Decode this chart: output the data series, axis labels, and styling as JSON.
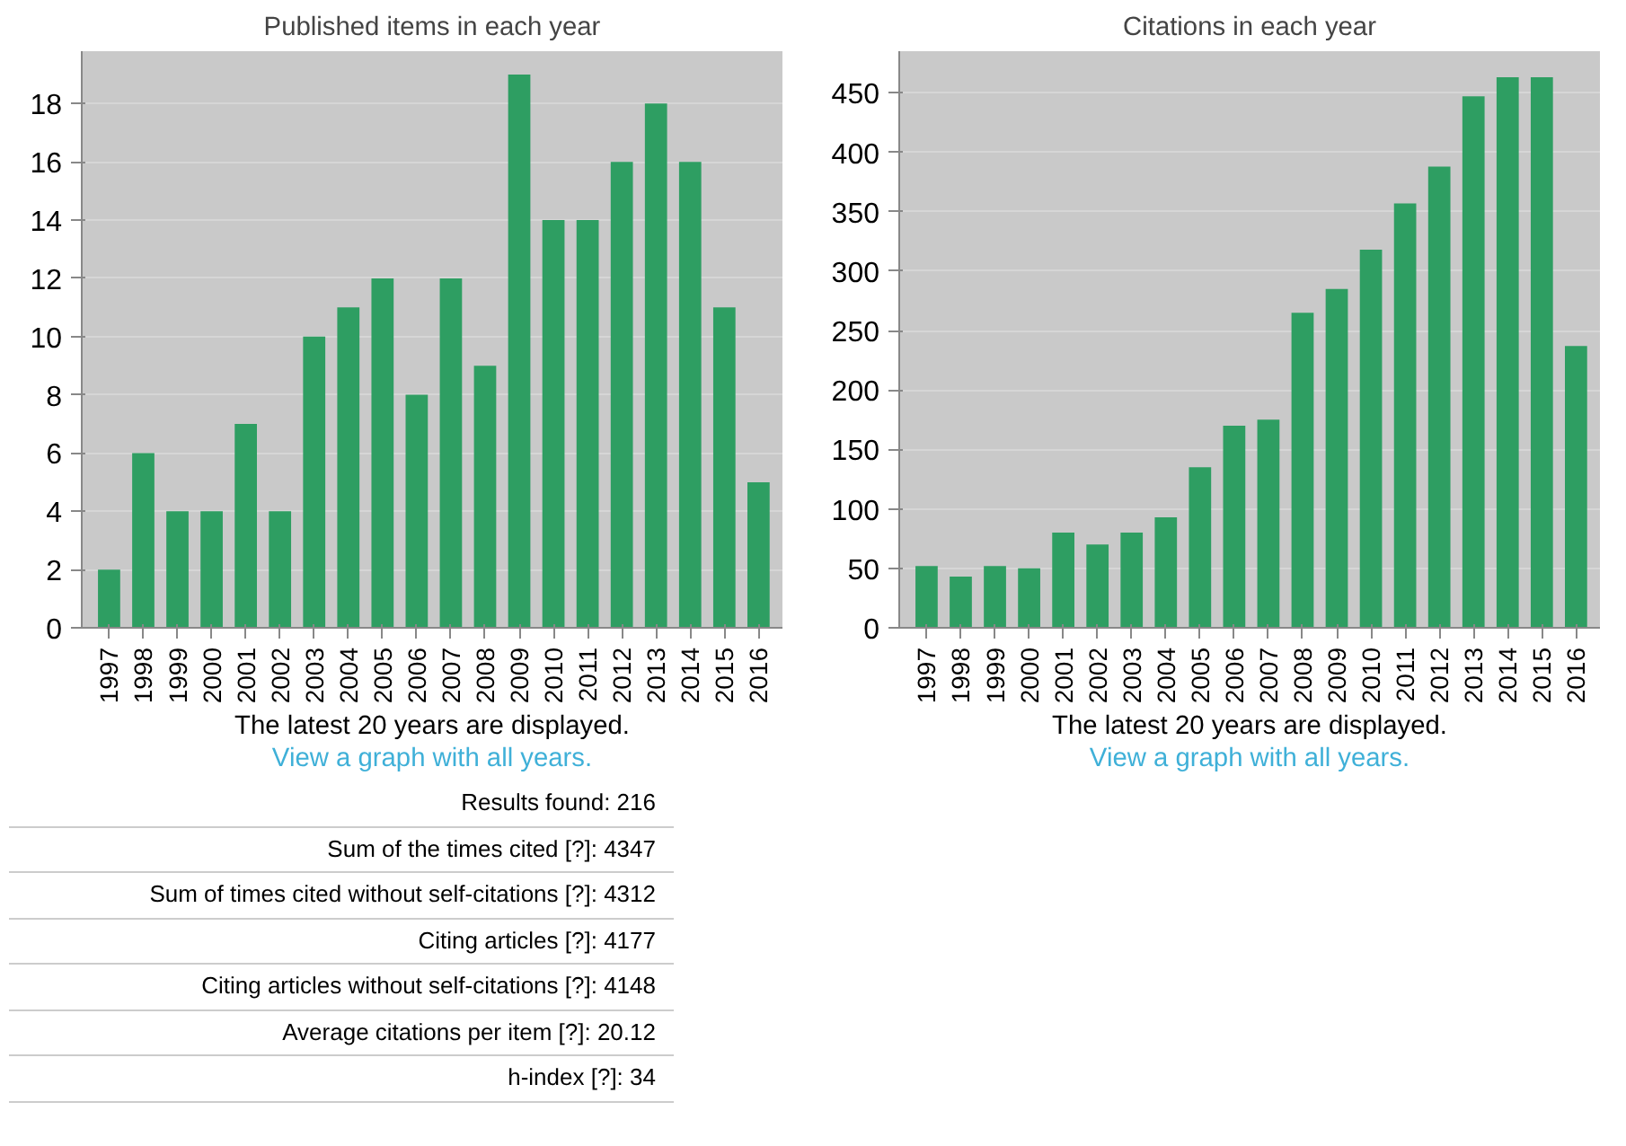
{
  "chart_data": [
    {
      "type": "bar",
      "title": "Published items in each year",
      "categories": [
        "1997",
        "1998",
        "1999",
        "2000",
        "2001",
        "2002",
        "2003",
        "2004",
        "2005",
        "2006",
        "2007",
        "2008",
        "2009",
        "2010",
        "2011",
        "2012",
        "2013",
        "2014",
        "2015",
        "2016"
      ],
      "values": [
        2,
        6,
        4,
        4,
        7,
        4,
        10,
        11,
        12,
        8,
        12,
        9,
        19,
        14,
        14,
        16,
        18,
        16,
        11,
        5
      ],
      "color": "#2e9e62",
      "ylim": [
        0,
        19.8
      ],
      "yticks": [
        0,
        2,
        4,
        6,
        8,
        10,
        12,
        14,
        16,
        18
      ],
      "grid": "y",
      "annotations": [
        "The latest 20 years are displayed.",
        "View a graph with all years."
      ]
    },
    {
      "type": "bar",
      "title": "Citations in each year",
      "categories": [
        "1997",
        "1998",
        "1999",
        "2000",
        "2001",
        "2002",
        "2003",
        "2004",
        "2005",
        "2006",
        "2007",
        "2008",
        "2009",
        "2010",
        "2011",
        "2012",
        "2013",
        "2014",
        "2015",
        "2016"
      ],
      "values": [
        52,
        43,
        52,
        50,
        80,
        70,
        80,
        93,
        135,
        170,
        175,
        265,
        285,
        318,
        357,
        388,
        447,
        463,
        463,
        237
      ],
      "color": "#2e9e62",
      "ylim": [
        0,
        485
      ],
      "yticks": [
        0,
        50,
        100,
        150,
        200,
        250,
        300,
        350,
        400,
        450
      ],
      "grid": "y",
      "annotations": [
        "The latest 20 years are displayed.",
        "View a graph with all years."
      ]
    },
    {
      "type": "other",
      "annotations": [
        "Results found: 216",
        "Sum of the times cited [?]: 4347",
        "Sum of times cited without self-citations [?]: 4312",
        "Citing articles [?]: 4177",
        "Citing articles without self-citations [?]: 4148",
        "Average citations per item [?]: 20.12",
        "h-index [?]: 34"
      ]
    }
  ]
}
